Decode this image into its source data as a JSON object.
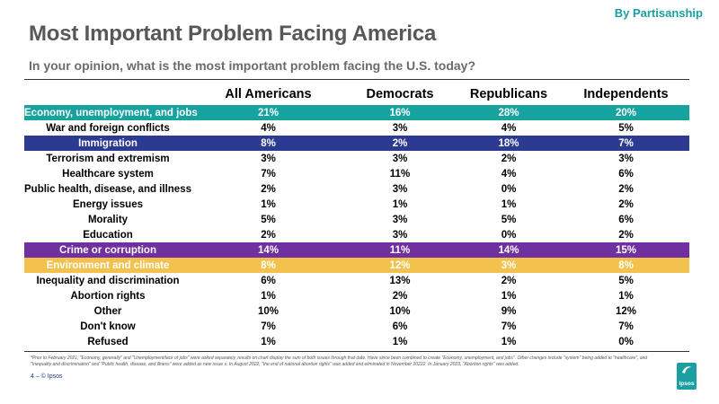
{
  "header": {
    "tag": "By Partisanship",
    "title": "Most Important Problem Facing America",
    "subtitle": "In your opinion, what is the most important problem facing the U.S. today?"
  },
  "table": {
    "columns": [
      "All Americans",
      "Democrats",
      "Republicans",
      "Independents"
    ],
    "rows": [
      {
        "label": "Economy, unemployment, and jobs",
        "values": [
          "21%",
          "16%",
          "28%",
          "20%"
        ],
        "highlight": "#16a3a0"
      },
      {
        "label": "War and foreign conflicts",
        "values": [
          "4%",
          "3%",
          "4%",
          "5%"
        ]
      },
      {
        "label": "Immigration",
        "values": [
          "8%",
          "2%",
          "18%",
          "7%"
        ],
        "highlight": "#2d3a92"
      },
      {
        "label": "Terrorism and extremism",
        "values": [
          "3%",
          "3%",
          "2%",
          "3%"
        ]
      },
      {
        "label": "Healthcare system",
        "values": [
          "7%",
          "11%",
          "4%",
          "6%"
        ]
      },
      {
        "label": "Public health, disease, and illness",
        "values": [
          "2%",
          "3%",
          "0%",
          "2%"
        ]
      },
      {
        "label": "Energy issues",
        "values": [
          "1%",
          "1%",
          "1%",
          "2%"
        ]
      },
      {
        "label": "Morality",
        "values": [
          "5%",
          "3%",
          "5%",
          "6%"
        ]
      },
      {
        "label": "Education",
        "values": [
          "2%",
          "3%",
          "0%",
          "2%"
        ]
      },
      {
        "label": "Crime or corruption",
        "values": [
          "14%",
          "11%",
          "14%",
          "15%"
        ],
        "highlight": "#7030a0"
      },
      {
        "label": "Environment and climate",
        "values": [
          "8%",
          "12%",
          "3%",
          "8%"
        ],
        "highlight": "#f2c14e"
      },
      {
        "label": "Inequality and discrimination",
        "values": [
          "6%",
          "13%",
          "2%",
          "5%"
        ]
      },
      {
        "label": "Abortion rights",
        "values": [
          "1%",
          "2%",
          "1%",
          "1%"
        ]
      },
      {
        "label": "Other",
        "values": [
          "10%",
          "10%",
          "9%",
          "12%"
        ]
      },
      {
        "label": "Don't know",
        "values": [
          "7%",
          "6%",
          "7%",
          "7%"
        ]
      },
      {
        "label": "Refused",
        "values": [
          "1%",
          "1%",
          "1%",
          "0%"
        ]
      }
    ]
  },
  "footnote": "*Prior to February 2021, \"Economy, generally\" and \"Unemployment/lack of jobs\" were asked separately, results on chart display the sum of both issues through that date. Have since been combined to create \"Economy, unemployment, and jobs\". Other changes include \"system\" being added to \"healthcare\", and \"Inequality and discrimination\" and \"Public health, disease, and illness\" were added as new issue s. In August 2022, \"the end of national abortion rights\" was added and eliminated in November 20222. In January 2023, \"Abortion rights\" was added.",
  "footer": {
    "page": "4 – © Ipsos",
    "logo_text": "Ipsos"
  },
  "colors": {
    "brand": "#1aa0a0",
    "title": "#585858"
  }
}
